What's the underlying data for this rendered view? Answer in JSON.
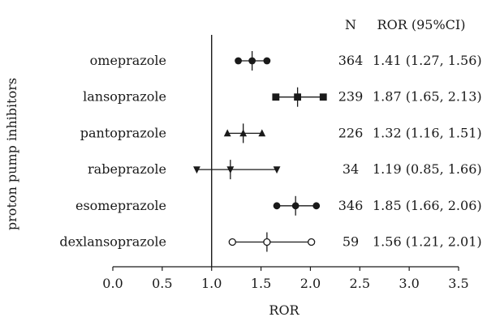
{
  "chart_data": {
    "type": "forest",
    "ylabel": "proton pump inhibitors",
    "xlabel": "ROR",
    "xlim": [
      0.0,
      3.5
    ],
    "xticks": [
      "0.0",
      "0.5",
      "1.0",
      "1.5",
      "2.0",
      "2.5",
      "3.0",
      "3.5"
    ],
    "reference_line": 1.0,
    "header": {
      "n": "N",
      "ror": "ROR (95%CI)"
    },
    "rows": [
      {
        "label": "omeprazole",
        "ror": 1.41,
        "lo": 1.27,
        "hi": 1.56,
        "n": "364",
        "ci_text": "1.41 (1.27, 1.56)",
        "marker": "circle"
      },
      {
        "label": "lansoprazole",
        "ror": 1.87,
        "lo": 1.65,
        "hi": 2.13,
        "n": "239",
        "ci_text": "1.87 (1.65, 2.13)",
        "marker": "square"
      },
      {
        "label": "pantoprazole",
        "ror": 1.32,
        "lo": 1.16,
        "hi": 1.51,
        "n": "226",
        "ci_text": "1.32 (1.16, 1.51)",
        "marker": "triangle-up"
      },
      {
        "label": "rabeprazole",
        "ror": 1.19,
        "lo": 0.85,
        "hi": 1.66,
        "n": "34",
        "ci_text": "1.19 (0.85, 1.66)",
        "marker": "triangle-down"
      },
      {
        "label": "esomeprazole",
        "ror": 1.85,
        "lo": 1.66,
        "hi": 2.06,
        "n": "346",
        "ci_text": "1.85 (1.66, 2.06)",
        "marker": "circle"
      },
      {
        "label": "dexlansoprazole",
        "ror": 1.56,
        "lo": 1.21,
        "hi": 2.01,
        "n": "59",
        "ci_text": "1.56 (1.21, 2.01)",
        "marker": "circle-open"
      }
    ]
  }
}
